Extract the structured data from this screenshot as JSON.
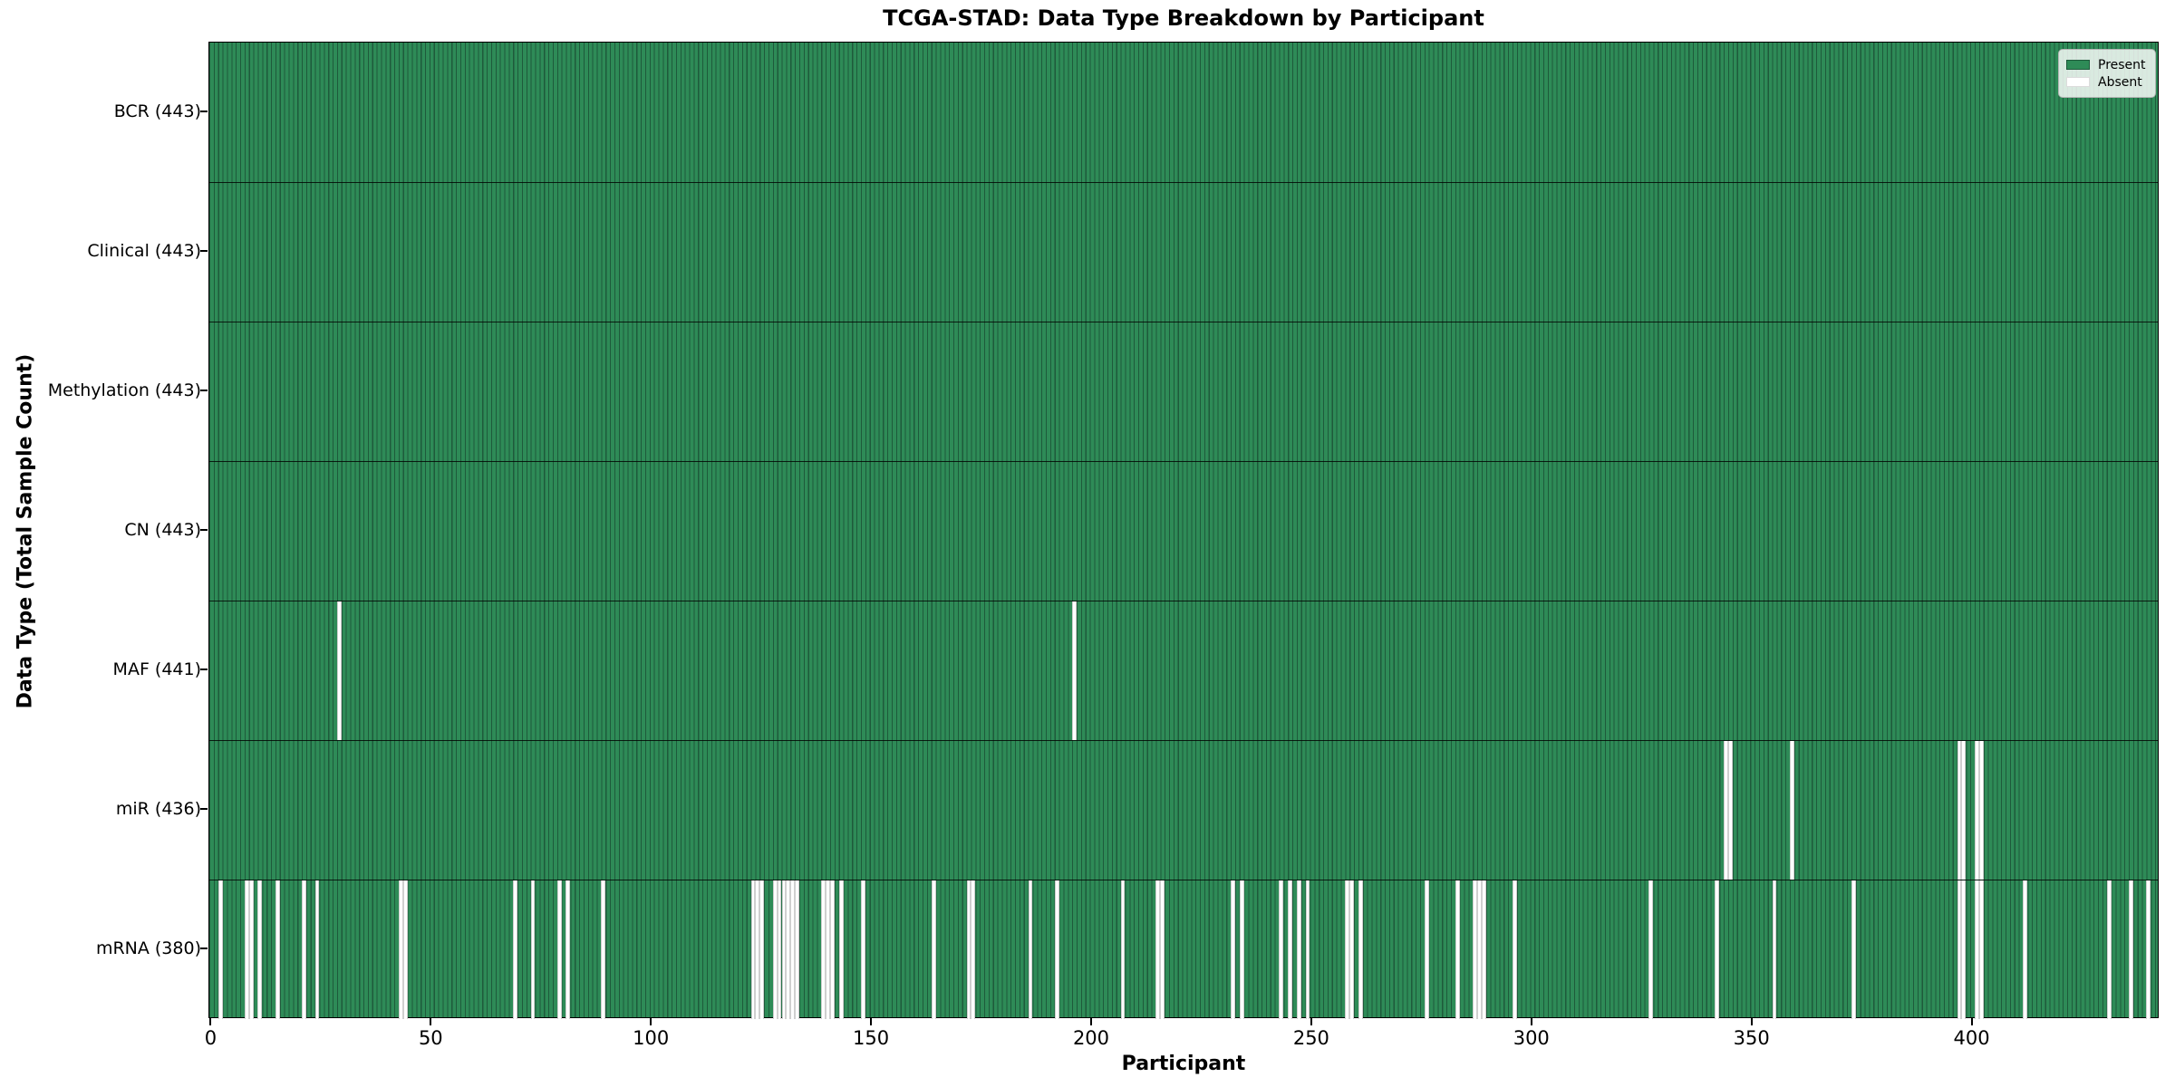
{
  "chart_data": {
    "type": "heatmap",
    "title": "TCGA-STAD: Data Type Breakdown by Participant",
    "xlabel": "Participant",
    "ylabel": "Data Type (Total Sample Count)",
    "n_participants": 443,
    "x_axis_range": [
      0,
      443
    ],
    "x_ticks": [
      0,
      50,
      100,
      150,
      200,
      250,
      300,
      350,
      400
    ],
    "grid": false,
    "legend_position": "upper right",
    "legend": [
      {
        "label": "Present",
        "color": "#2e8b57"
      },
      {
        "label": "Absent",
        "color": "#ffffff"
      }
    ],
    "colors": {
      "present_fill": "#2e8b57",
      "bar_edge": "#1e5a3b",
      "absent_fill": "#ffffff",
      "spine": "#000000",
      "background": "#ffffff"
    },
    "rows": [
      {
        "label": "BCR (443)",
        "data_type": "BCR",
        "total_present": 443,
        "absent_participants": []
      },
      {
        "label": "Clinical (443)",
        "data_type": "Clinical",
        "total_present": 443,
        "absent_participants": []
      },
      {
        "label": "Methylation (443)",
        "data_type": "Methylation",
        "total_present": 443,
        "absent_participants": []
      },
      {
        "label": "CN (443)",
        "data_type": "CN",
        "total_present": 443,
        "absent_participants": []
      },
      {
        "label": "MAF (441)",
        "data_type": "MAF",
        "total_present": 441,
        "absent_participants": [
          29,
          196
        ]
      },
      {
        "label": "miR (436)",
        "data_type": "miR",
        "total_present": 436,
        "absent_participants": [
          344,
          345,
          359,
          397,
          398,
          401,
          402
        ]
      },
      {
        "label": "mRNA (380)",
        "data_type": "mRNA",
        "total_present": 380,
        "absent_participants": [
          2,
          8,
          9,
          11,
          15,
          21,
          24,
          43,
          44,
          69,
          73,
          79,
          81,
          89,
          123,
          124,
          125,
          128,
          129,
          130,
          131,
          132,
          133,
          139,
          140,
          141,
          143,
          148,
          164,
          172,
          173,
          186,
          192,
          207,
          215,
          216,
          232,
          234,
          243,
          245,
          247,
          249,
          258,
          259,
          261,
          276,
          283,
          287,
          288,
          289,
          296,
          327,
          342,
          355,
          373,
          397,
          398,
          401,
          402,
          412,
          431,
          436,
          440
        ]
      }
    ]
  }
}
